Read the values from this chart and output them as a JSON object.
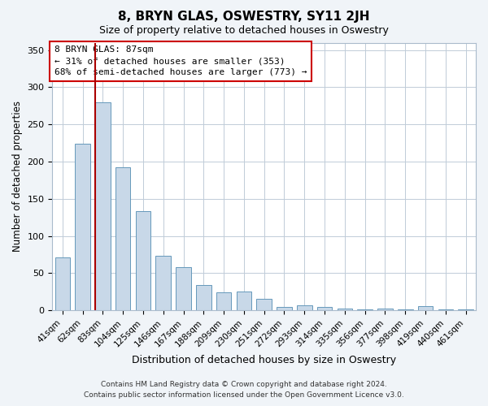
{
  "title": "8, BRYN GLAS, OSWESTRY, SY11 2JH",
  "subtitle": "Size of property relative to detached houses in Oswestry",
  "xlabel": "Distribution of detached houses by size in Oswestry",
  "ylabel": "Number of detached properties",
  "bar_labels": [
    "41sqm",
    "62sqm",
    "83sqm",
    "104sqm",
    "125sqm",
    "146sqm",
    "167sqm",
    "188sqm",
    "209sqm",
    "230sqm",
    "251sqm",
    "272sqm",
    "293sqm",
    "314sqm",
    "335sqm",
    "356sqm",
    "377sqm",
    "398sqm",
    "419sqm",
    "440sqm",
    "461sqm"
  ],
  "bar_values": [
    71,
    224,
    280,
    192,
    133,
    73,
    58,
    34,
    24,
    25,
    15,
    5,
    7,
    5,
    2,
    1,
    2,
    1,
    6,
    1,
    1
  ],
  "bar_color": "#c8d8e8",
  "bar_edge_color": "#6699bb",
  "vline_color": "#aa0000",
  "annotation_title": "8 BRYN GLAS: 87sqm",
  "annotation_line1": "← 31% of detached houses are smaller (353)",
  "annotation_line2": "68% of semi-detached houses are larger (773) →",
  "annotation_box_color": "#cc0000",
  "ylim": [
    0,
    360
  ],
  "yticks": [
    0,
    50,
    100,
    150,
    200,
    250,
    300,
    350
  ],
  "footer1": "Contains HM Land Registry data © Crown copyright and database right 2024.",
  "footer2": "Contains public sector information licensed under the Open Government Licence v3.0.",
  "background_color": "#f0f4f8",
  "plot_bg_color": "#ffffff"
}
